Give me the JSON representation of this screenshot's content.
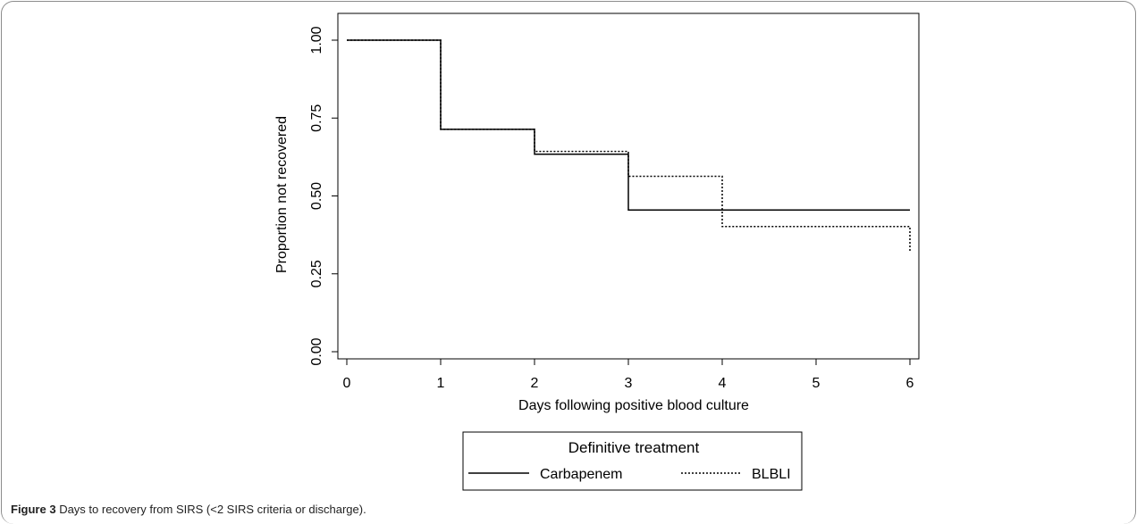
{
  "chart_data": {
    "type": "line",
    "step": true,
    "xlabel": "Days following positive blood culture",
    "ylabel": "Proportion not recovered",
    "xlim": [
      0,
      6
    ],
    "ylim": [
      0,
      1
    ],
    "x_ticks": [
      0,
      1,
      2,
      3,
      4,
      5,
      6
    ],
    "x_tick_labels": [
      "0",
      "1",
      "2",
      "3",
      "4",
      "5",
      "6"
    ],
    "y_ticks": [
      0,
      0.25,
      0.5,
      0.75,
      1
    ],
    "y_tick_labels": [
      "0.00",
      "0.25",
      "0.50",
      "0.75",
      "1.00"
    ],
    "grid": false,
    "legend_title": "Definitive treatment",
    "legend_position": "bottom",
    "series": [
      {
        "name": "Carbapenem",
        "style": "solid",
        "color": "#000000",
        "x": [
          0,
          1,
          2,
          3,
          6
        ],
        "y": [
          1.0,
          0.714,
          0.634,
          0.455,
          0.455
        ]
      },
      {
        "name": "BLBLI",
        "style": "dotted",
        "color": "#000000",
        "x": [
          0,
          1,
          2,
          3,
          4,
          6
        ],
        "y": [
          1.0,
          0.714,
          0.643,
          0.563,
          0.402,
          0.322
        ]
      }
    ]
  },
  "caption": {
    "label": "Figure 3",
    "text": " Days to recovery from SIRS (<2 SIRS criteria or discharge)."
  }
}
